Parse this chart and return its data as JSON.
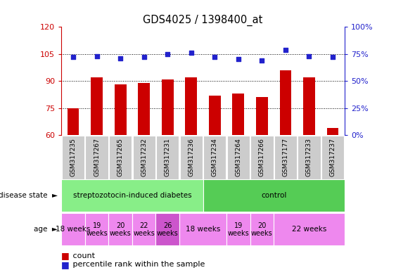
{
  "title": "GDS4025 / 1398400_at",
  "samples": [
    "GSM317235",
    "GSM317267",
    "GSM317265",
    "GSM317232",
    "GSM317231",
    "GSM317236",
    "GSM317234",
    "GSM317264",
    "GSM317266",
    "GSM317177",
    "GSM317233",
    "GSM317237"
  ],
  "counts": [
    75,
    92,
    88,
    89,
    91,
    92,
    82,
    83,
    81,
    96,
    92,
    64
  ],
  "percentiles": [
    72,
    73,
    71,
    72,
    75,
    76,
    72,
    70,
    69,
    79,
    73,
    72
  ],
  "ymin": 60,
  "ymax": 120,
  "yticks": [
    60,
    75,
    90,
    105,
    120
  ],
  "y2min": 0,
  "y2max": 100,
  "y2ticks": [
    0,
    25,
    50,
    75,
    100
  ],
  "bar_color": "#cc0000",
  "dot_color": "#2222cc",
  "title_color": "#000000",
  "left_axis_color": "#cc0000",
  "right_axis_color": "#2222cc",
  "sample_bg_color": "#cccccc",
  "disease_groups": [
    {
      "label": "streptozotocin-induced diabetes",
      "start": 0,
      "end": 6,
      "color": "#88ee88"
    },
    {
      "label": "control",
      "start": 6,
      "end": 12,
      "color": "#55cc55"
    }
  ],
  "age_groups": [
    {
      "label": "18 weeks",
      "start": 0,
      "end": 1,
      "color": "#ee88ee"
    },
    {
      "label": "19\nweeks",
      "start": 1,
      "end": 2,
      "color": "#ee88ee"
    },
    {
      "label": "20\nweeks",
      "start": 2,
      "end": 3,
      "color": "#ee88ee"
    },
    {
      "label": "22\nweeks",
      "start": 3,
      "end": 4,
      "color": "#ee88ee"
    },
    {
      "label": "26\nweeks",
      "start": 4,
      "end": 5,
      "color": "#cc55cc"
    },
    {
      "label": "18 weeks",
      "start": 5,
      "end": 7,
      "color": "#ee88ee"
    },
    {
      "label": "19\nweeks",
      "start": 7,
      "end": 8,
      "color": "#ee88ee"
    },
    {
      "label": "20\nweeks",
      "start": 8,
      "end": 9,
      "color": "#ee88ee"
    },
    {
      "label": "22 weeks",
      "start": 9,
      "end": 12,
      "color": "#ee88ee"
    }
  ],
  "legend_count_color": "#cc0000",
  "legend_dot_color": "#2222cc"
}
